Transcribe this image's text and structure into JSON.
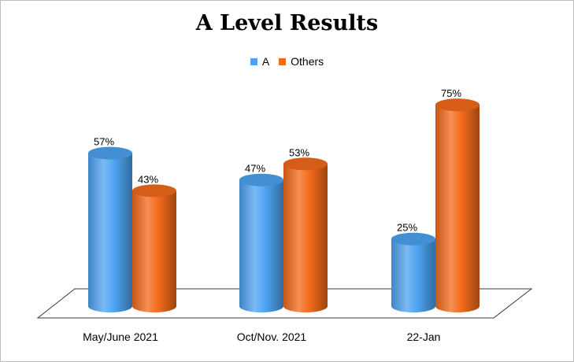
{
  "chart_data": {
    "type": "bar",
    "title": "A Level Results",
    "categories": [
      "May/June 2021",
      "Oct/Nov. 2021",
      "22-Jan"
    ],
    "series": [
      {
        "name": "A",
        "values": [
          57,
          47,
          25
        ],
        "labels": [
          "57%",
          "47%",
          "25%"
        ],
        "color": "#4da3f0"
      },
      {
        "name": "Others",
        "values": [
          43,
          53,
          75
        ],
        "labels": [
          "43%",
          "53%",
          "75%"
        ],
        "color": "#f26a1b"
      }
    ],
    "unit": "%",
    "ylim": [
      0,
      100
    ],
    "grid": false,
    "legend_position": "top"
  }
}
